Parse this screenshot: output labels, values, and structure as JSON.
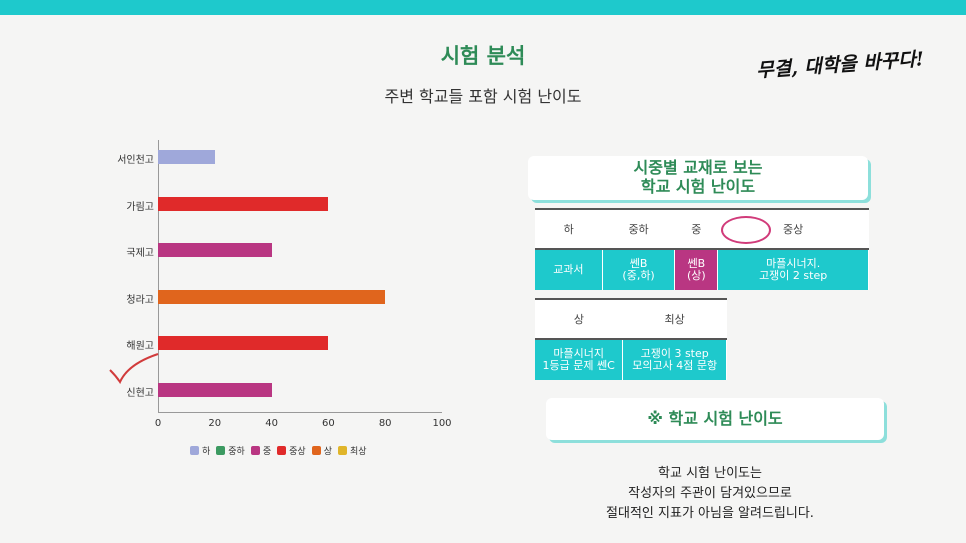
{
  "header": {
    "title": "시험 분석",
    "subtitle": "주변 학교들 포함 시험 난이도",
    "slogan": "무결, 대학을 바꾸다!"
  },
  "colors": {
    "ha": "#9fa8da",
    "jungha": "#3c9a61",
    "jung": "#b93682",
    "jungsang": "#e02a2a",
    "sang": "#e0651d",
    "choesang": "#e0b52a",
    "teal": "#1ec9cc"
  },
  "chart_data": {
    "type": "bar",
    "orientation": "horizontal",
    "categories": [
      "서인천고",
      "가림고",
      "국제고",
      "청라고",
      "해원고",
      "신현고"
    ],
    "values": [
      20,
      60,
      40,
      80,
      60,
      40
    ],
    "bar_levels": [
      "하",
      "중상",
      "중",
      "상",
      "중상",
      "중"
    ],
    "xlim": [
      0,
      100
    ],
    "xticks": [
      0,
      20,
      40,
      60,
      80,
      100
    ],
    "legend": [
      "하",
      "중하",
      "중",
      "중상",
      "상",
      "최상"
    ],
    "legend_placement": "bottom"
  },
  "panel": {
    "banner_title_line1": "시중별 교재로 보는",
    "banner_title_line2": "학교 시험 난이도",
    "table1_headers": [
      "하",
      "중하",
      "중",
      "중상"
    ],
    "table1_values": [
      [
        "교과서"
      ],
      [
        "쎈B",
        "(중,하)"
      ],
      [
        "쎈B",
        "(상)"
      ],
      [
        "마플시너지.",
        "고쟁이 2 step"
      ]
    ],
    "table2_headers": [
      "상",
      "최상"
    ],
    "table2_values": [
      [
        "마플시너지",
        "1등급 문제 쎈C"
      ],
      [
        "고쟁이 3 step",
        "모의고사 4점 문항"
      ]
    ],
    "banner2_title": "※ 학교 시험 난이도",
    "note_lines": [
      "학교 시험 난이도는",
      "작성자의 주관이 담겨있으므로",
      "절대적인 지표가 아님을 알려드립니다."
    ]
  }
}
